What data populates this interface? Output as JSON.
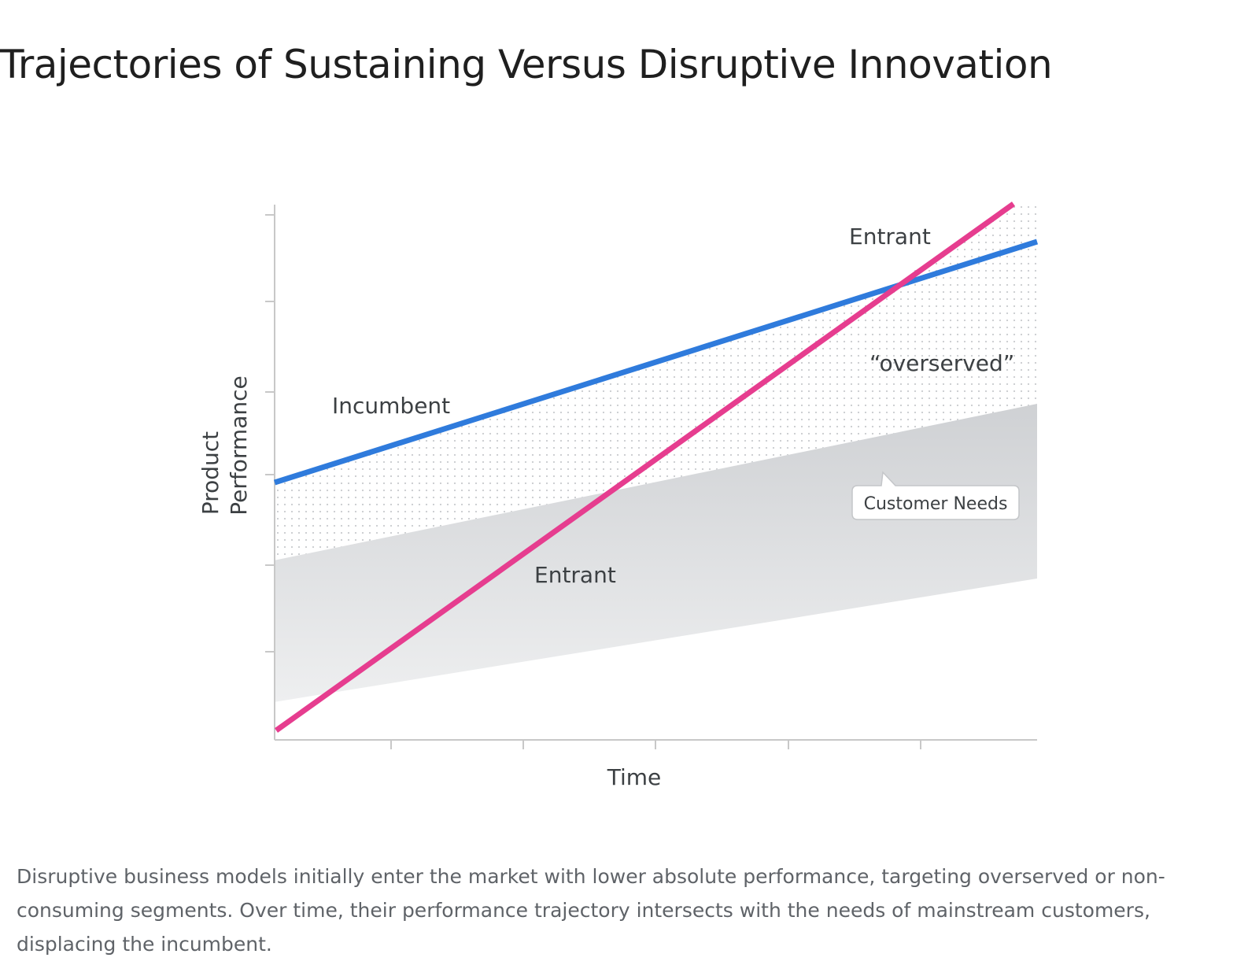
{
  "title": "Trajectories of Sustaining Versus Disruptive Innovation",
  "caption": "Disruptive business models initially enter the market with lower absolute performance, targeting overserved or non-consuming segments. Over time, their performance trajectory intersects with the needs of mainstream customers, displacing the incumbent.",
  "diagram": {
    "y_axis_label_line1": "Product",
    "y_axis_label_line2": "Performance",
    "x_axis_label": "Time",
    "incumbent_label": "Incumbent",
    "entrant_label_top": "Entrant",
    "entrant_label_bottom": "Entrant",
    "overserved_label": "“overserved”",
    "customer_needs_label": "Customer Needs",
    "colors": {
      "incumbent": "#2f7bdc",
      "entrant": "#e63d8f",
      "customer_needs_band": "#d6d8db",
      "overserved_dots": "#c9cbce",
      "axis": "#c8c8c8"
    }
  }
}
